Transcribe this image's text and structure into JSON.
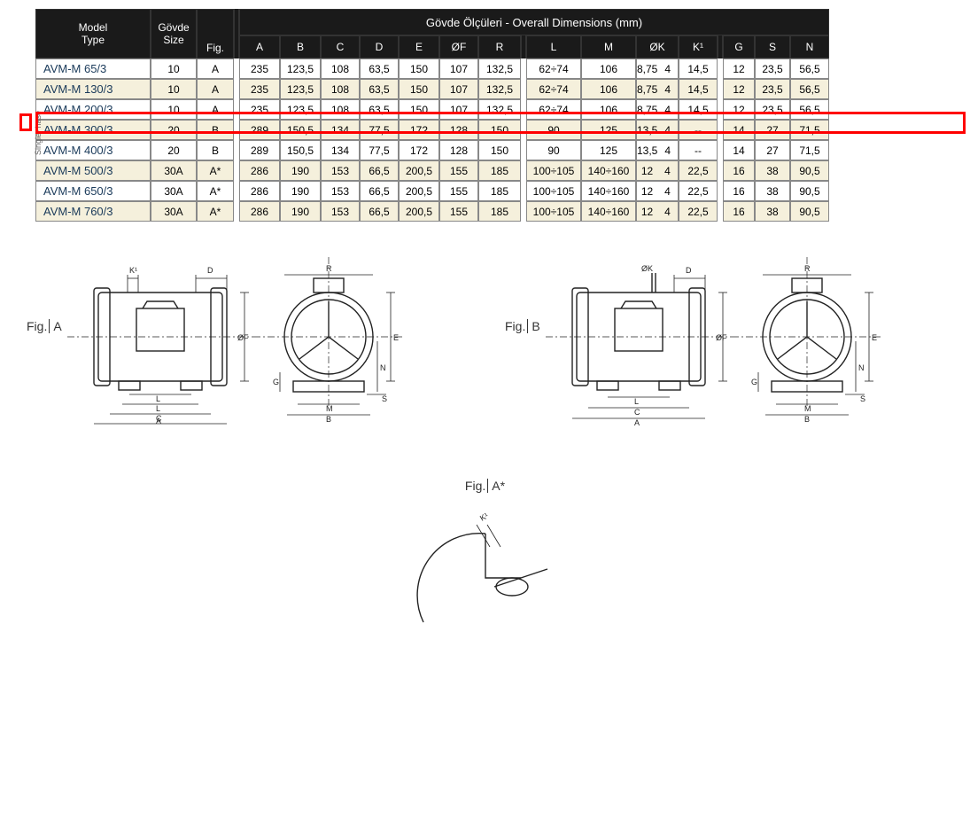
{
  "header": {
    "model_type": "Model\nType",
    "govde_size": "Gövde\nSize",
    "fig": "Fig.",
    "overall_title": "Gövde Ölçüleri - Overall Dimensions (mm)",
    "cols_g1": [
      "A",
      "B",
      "C",
      "D",
      "E",
      "ØF",
      "R"
    ],
    "cols_g2": [
      "L",
      "M",
      "ØK",
      "K¹"
    ],
    "cols_g3": [
      "G",
      "S",
      "N"
    ]
  },
  "side_label": "Single- hase",
  "table": {
    "columns": [
      "model",
      "govde",
      "fig",
      "A",
      "B",
      "C",
      "D",
      "E",
      "OF",
      "R",
      "L",
      "M",
      "OK",
      "OKn",
      "K1",
      "G",
      "S",
      "N"
    ],
    "rows": [
      {
        "model": "AVM-M 65/3",
        "govde": "10",
        "fig": "A",
        "A": "235",
        "B": "123,5",
        "C": "108",
        "D": "63,5",
        "E": "150",
        "OF": "107",
        "R": "132,5",
        "L": "62÷74",
        "M": "106",
        "OK": "8,75",
        "OKn": "4",
        "K1": "14,5",
        "G": "12",
        "S": "23,5",
        "N": "56,5",
        "alt": false,
        "hl": true
      },
      {
        "model": "AVM-M 130/3",
        "govde": "10",
        "fig": "A",
        "A": "235",
        "B": "123,5",
        "C": "108",
        "D": "63,5",
        "E": "150",
        "OF": "107",
        "R": "132,5",
        "L": "62÷74",
        "M": "106",
        "OK": "8,75",
        "OKn": "4",
        "K1": "14,5",
        "G": "12",
        "S": "23,5",
        "N": "56,5",
        "alt": true
      },
      {
        "model": "AVM-M 200/3",
        "govde": "10",
        "fig": "A",
        "A": "235",
        "B": "123,5",
        "C": "108",
        "D": "63,5",
        "E": "150",
        "OF": "107",
        "R": "132,5",
        "L": "62÷74",
        "M": "106",
        "OK": "8,75",
        "OKn": "4",
        "K1": "14,5",
        "G": "12",
        "S": "23,5",
        "N": "56,5",
        "alt": false
      },
      {
        "model": "AVM-M 300/3",
        "govde": "20",
        "fig": "B",
        "A": "289",
        "B": "150,5",
        "C": "134",
        "D": "77,5",
        "E": "172",
        "OF": "128",
        "R": "150",
        "L": "90",
        "M": "125",
        "OK": "13,5",
        "OKn": "4",
        "K1": "--",
        "G": "14",
        "S": "27",
        "N": "71,5",
        "alt": true
      },
      {
        "model": "AVM-M 400/3",
        "govde": "20",
        "fig": "B",
        "A": "289",
        "B": "150,5",
        "C": "134",
        "D": "77,5",
        "E": "172",
        "OF": "128",
        "R": "150",
        "L": "90",
        "M": "125",
        "OK": "13,5",
        "OKn": "4",
        "K1": "--",
        "G": "14",
        "S": "27",
        "N": "71,5",
        "alt": false
      },
      {
        "model": "AVM-M 500/3",
        "govde": "30A",
        "fig": "A*",
        "A": "286",
        "B": "190",
        "C": "153",
        "D": "66,5",
        "E": "200,5",
        "OF": "155",
        "R": "185",
        "L": "100÷105",
        "M": "140÷160",
        "OK": "12",
        "OKn": "4",
        "K1": "22,5",
        "G": "16",
        "S": "38",
        "N": "90,5",
        "alt": true
      },
      {
        "model": "AVM-M 650/3",
        "govde": "30A",
        "fig": "A*",
        "A": "286",
        "B": "190",
        "C": "153",
        "D": "66,5",
        "E": "200,5",
        "OF": "155",
        "R": "185",
        "L": "100÷105",
        "M": "140÷160",
        "OK": "12",
        "OKn": "4",
        "K1": "22,5",
        "G": "16",
        "S": "38",
        "N": "90,5",
        "alt": false
      },
      {
        "model": "AVM-M 760/3",
        "govde": "30A",
        "fig": "A*",
        "A": "286",
        "B": "190",
        "C": "153",
        "D": "66,5",
        "E": "200,5",
        "OF": "155",
        "R": "185",
        "L": "100÷105",
        "M": "140÷160",
        "OK": "12",
        "OKn": "4",
        "K1": "22,5",
        "G": "16",
        "S": "38",
        "N": "90,5",
        "alt": true
      }
    ],
    "col_widths": {
      "model": 130,
      "govde": 52,
      "fig": 42,
      "A": 46,
      "B": 46,
      "C": 44,
      "D": 44,
      "E": 46,
      "OF": 44,
      "R": 48,
      "L": 62,
      "M": 62,
      "OK": 48,
      "K1": 44,
      "G": 36,
      "S": 40,
      "N": 44
    },
    "colors": {
      "header_bg": "#1a1a1a",
      "header_fg": "#ffffff",
      "row_bg": "#ffffff",
      "row_alt_bg": "#f5f0dc",
      "border": "#888888",
      "model_text": "#1a3a5a",
      "highlight": "#ff0000"
    },
    "font_sizes": {
      "header": 12,
      "cell": 12,
      "model": 13
    }
  },
  "figures": {
    "A": {
      "label": "Fig.",
      "letter": "A",
      "dims_side": [
        "K¹",
        "D",
        "ØF",
        "L",
        "L",
        "C",
        "A"
      ],
      "dims_front": [
        "R",
        "E",
        "G",
        "N",
        "S",
        "M",
        "B"
      ]
    },
    "B": {
      "label": "Fig.",
      "letter": "B",
      "dims_side": [
        "ØK",
        "D",
        "ØF",
        "L",
        "C",
        "A"
      ],
      "dims_front": [
        "R",
        "E",
        "G",
        "N",
        "S",
        "M",
        "B"
      ]
    },
    "Astar": {
      "label": "Fig.",
      "letter": "A*",
      "dim": "K¹"
    }
  }
}
